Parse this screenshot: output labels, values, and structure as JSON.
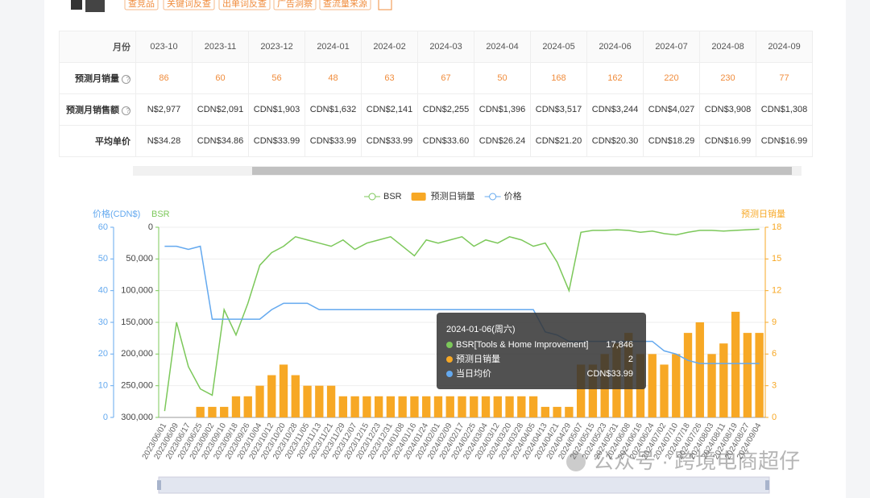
{
  "toolbar": {
    "buttons": [
      "查竞品",
      "关键词反查",
      "出单词反查",
      "广告洞察",
      "查流量来源"
    ]
  },
  "table": {
    "header": "月份",
    "months": [
      "023-10",
      "2023-11",
      "2023-12",
      "2024-01",
      "2024-02",
      "2024-03",
      "2024-04",
      "2024-05",
      "2024-06",
      "2024-07",
      "2024-08",
      "2024-09"
    ],
    "rows": [
      {
        "label": "预测月销量",
        "cells": [
          "86",
          "60",
          "56",
          "48",
          "63",
          "67",
          "50",
          "168",
          "162",
          "220",
          "230",
          "77"
        ]
      },
      {
        "label": "预测月销售额",
        "cells": [
          "N$2,977",
          "CDN$2,091",
          "CDN$1,903",
          "CDN$1,632",
          "CDN$2,141",
          "CDN$2,255",
          "CDN$1,396",
          "CDN$3,517",
          "CDN$3,244",
          "CDN$4,027",
          "CDN$3,908",
          "CDN$1,308"
        ]
      },
      {
        "label": "平均单价",
        "cells": [
          "N$34.28",
          "CDN$34.86",
          "CDN$33.99",
          "CDN$33.99",
          "CDN$33.99",
          "CDN$33.60",
          "CDN$26.24",
          "CDN$21.20",
          "CDN$20.30",
          "CDN$18.29",
          "CDN$16.99",
          "CDN$16.99"
        ]
      }
    ]
  },
  "chart_data": {
    "type": "combo",
    "y_axis_label": "价格(CDN$)",
    "y2_axis_label": "BSR",
    "y3_axis_label": "预测日销量",
    "x": [
      "2023/06/01",
      "2023/06/09",
      "2023/06/17",
      "2023/06/25",
      "2023/09/02",
      "2023/09/10",
      "2023/09/18",
      "2023/09/26",
      "2023/10/04",
      "2023/10/12",
      "2023/10/20",
      "2023/10/28",
      "2023/11/05",
      "2023/11/13",
      "2023/11/21",
      "2023/11/29",
      "2023/12/07",
      "2023/12/15",
      "2023/12/23",
      "2023/12/31",
      "2024/01/08",
      "2024/01/16",
      "2024/01/24",
      "2024/02/01",
      "2024/02/09",
      "2024/02/17",
      "2024/02/25",
      "2024/03/04",
      "2024/03/12",
      "2024/03/20",
      "2024/03/28",
      "2024/04/05",
      "2024/04/13",
      "2024/04/21",
      "2024/04/29",
      "2024/05/07",
      "2024/05/15",
      "2024/05/23",
      "2024/05/31",
      "2024/06/08",
      "2024/06/16",
      "2024/06/24",
      "2024/07/02",
      "2024/07/10",
      "2024/07/18",
      "2024/07/26",
      "2024/08/03",
      "2024/08/11",
      "2024/08/19",
      "2024/08/27",
      "2024/09/04"
    ],
    "ylim": [
      0,
      60
    ],
    "yticks": [
      0,
      10,
      20,
      30,
      40,
      50,
      60
    ],
    "y2lim": [
      0,
      300000
    ],
    "y2_inverted": true,
    "y2ticks": [
      0,
      {
        "value": 50000,
        "label": "50,000"
      },
      {
        "value": 100000,
        "label": "100,000"
      },
      {
        "value": 150000,
        "label": "150,000"
      },
      {
        "value": 200000,
        "label": "200,000"
      },
      {
        "value": 250000,
        "label": "250,000"
      },
      {
        "value": 300000,
        "label": "300,000"
      }
    ],
    "y3lim": [
      0,
      18
    ],
    "y3ticks": [
      0,
      3,
      6,
      9,
      12,
      15,
      18
    ],
    "grid": true,
    "series": [
      {
        "name": "BSR",
        "type": "line",
        "axis": "y2",
        "color": "#7cc85a",
        "values": [
          290000,
          150000,
          220000,
          255000,
          265000,
          130000,
          170000,
          120000,
          60000,
          40000,
          30000,
          15000,
          20000,
          25000,
          30000,
          20000,
          35000,
          25000,
          20000,
          15000,
          30000,
          45000,
          20000,
          25000,
          20000,
          15000,
          30000,
          20000,
          25000,
          15000,
          20000,
          30000,
          25000,
          55000,
          100000,
          8000,
          5000,
          5000,
          4000,
          5000,
          8000,
          6000,
          10000,
          12000,
          8000,
          5000,
          5000,
          6000,
          5000,
          4000,
          3000
        ]
      },
      {
        "name": "预测日销量",
        "type": "bar",
        "axis": "y3",
        "color": "#f7a825",
        "values": [
          0,
          0,
          0,
          1,
          1,
          1,
          2,
          2,
          3,
          4,
          5,
          4,
          3,
          3,
          3,
          2,
          2,
          2,
          2,
          2,
          2,
          2,
          2,
          2,
          2,
          2,
          2,
          2,
          2,
          2,
          2,
          2,
          1,
          1,
          1,
          5,
          5,
          6,
          7,
          8,
          6,
          6,
          5,
          6,
          8,
          9,
          6,
          7,
          10,
          8,
          8
        ]
      },
      {
        "name": "价格",
        "type": "line",
        "axis": "y",
        "color": "#64a9ef",
        "values": [
          54,
          54,
          53,
          54,
          31,
          31,
          31,
          31,
          31,
          34,
          36,
          36,
          36,
          34,
          34,
          34,
          34,
          34,
          34,
          34,
          34,
          34,
          34,
          34,
          34,
          34,
          34,
          34,
          34,
          34,
          34,
          34,
          27,
          26,
          24,
          24,
          24,
          24,
          24,
          24,
          24,
          24,
          21,
          20,
          18,
          17,
          17,
          17,
          17,
          17,
          17
        ]
      }
    ],
    "tooltip": {
      "title": "2024-01-06(周六)",
      "rows": [
        {
          "name": "BSR[Tools & Home Improvement]",
          "value": "17,846"
        },
        {
          "name": "预测日销量",
          "value": "2"
        },
        {
          "name": "当日均价",
          "value": "CDN$33.99"
        }
      ]
    }
  },
  "watermark": "公众号 · 跨境电商超仔"
}
